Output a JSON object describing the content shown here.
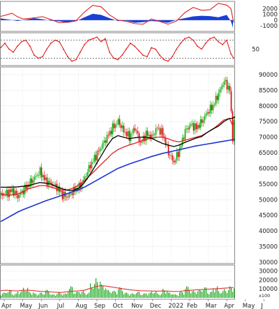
{
  "chart_data": [
    {
      "type": "area",
      "panel": "macd_histogram",
      "ylim": [
        -1700,
        3000
      ],
      "y_ticks": [
        "2000",
        "1000",
        "0",
        "-1000"
      ],
      "colors": {
        "positive": "#1a3fd6",
        "negative": "#1a3fd6",
        "line": "#e02020"
      },
      "histogram": [
        [
          0,
          300
        ],
        [
          12,
          100
        ],
        [
          24,
          -150
        ],
        [
          36,
          100
        ],
        [
          48,
          350
        ],
        [
          60,
          150
        ],
        [
          72,
          -100
        ],
        [
          84,
          -200
        ],
        [
          96,
          -450
        ],
        [
          108,
          -200
        ],
        [
          120,
          500
        ],
        [
          132,
          1100
        ],
        [
          144,
          900
        ],
        [
          156,
          350
        ],
        [
          168,
          -150
        ],
        [
          180,
          -100
        ],
        [
          192,
          -450
        ],
        [
          204,
          -350
        ],
        [
          216,
          -150
        ],
        [
          228,
          -250
        ],
        [
          240,
          -450
        ],
        [
          252,
          50
        ],
        [
          264,
          350
        ],
        [
          276,
          650
        ],
        [
          288,
          750
        ],
        [
          300,
          700
        ],
        [
          312,
          500
        ],
        [
          324,
          900
        ],
        [
          330,
          -200
        ],
        [
          333,
          -1300
        ]
      ],
      "signal_line": [
        [
          0,
          650
        ],
        [
          8,
          900
        ],
        [
          16,
          1200
        ],
        [
          24,
          600
        ],
        [
          32,
          200
        ],
        [
          44,
          350
        ],
        [
          60,
          600
        ],
        [
          72,
          100
        ],
        [
          84,
          -450
        ],
        [
          96,
          -350
        ],
        [
          108,
          -100
        ],
        [
          120,
          1400
        ],
        [
          132,
          2550
        ],
        [
          144,
          2300
        ],
        [
          156,
          900
        ],
        [
          168,
          0
        ],
        [
          180,
          -200
        ],
        [
          192,
          -600
        ],
        [
          204,
          -700
        ],
        [
          216,
          200
        ],
        [
          226,
          -150
        ],
        [
          240,
          -700
        ],
        [
          252,
          -150
        ],
        [
          264,
          1300
        ],
        [
          276,
          2200
        ],
        [
          288,
          1700
        ],
        [
          300,
          1800
        ],
        [
          312,
          2900
        ],
        [
          324,
          2600
        ],
        [
          330,
          2000
        ],
        [
          334,
          -400
        ]
      ]
    },
    {
      "type": "line",
      "panel": "oscillator",
      "ylim": [
        0,
        100
      ],
      "y_ticks": [
        "50"
      ],
      "reference_levels": [
        80,
        20
      ],
      "colors": {
        "line": "#e02020"
      },
      "x": [
        0,
        6,
        12,
        18,
        24,
        30,
        36,
        42,
        48,
        54,
        60,
        66,
        72,
        78,
        84,
        90,
        96,
        102,
        108,
        114,
        120,
        126,
        132,
        138,
        144,
        150,
        156,
        162,
        168,
        174,
        180,
        186,
        192,
        198,
        204,
        210,
        216,
        222,
        228,
        234,
        240,
        246,
        252,
        258,
        264,
        270,
        276,
        282,
        288,
        294,
        300,
        306,
        312,
        318,
        324,
        330,
        334
      ],
      "values": [
        55,
        70,
        50,
        40,
        60,
        75,
        80,
        60,
        30,
        20,
        25,
        50,
        70,
        80,
        75,
        50,
        25,
        10,
        15,
        40,
        65,
        80,
        85,
        90,
        75,
        85,
        40,
        20,
        15,
        30,
        50,
        70,
        60,
        45,
        30,
        25,
        55,
        50,
        30,
        15,
        10,
        25,
        50,
        70,
        85,
        90,
        80,
        60,
        50,
        70,
        85,
        90,
        75,
        65,
        80,
        35,
        20
      ]
    },
    {
      "type": "line",
      "panel": "price",
      "ylim": [
        30000,
        92000
      ],
      "y_ticks": [
        "90000",
        "85000",
        "80000",
        "75000",
        "70000",
        "65000",
        "60000",
        "55000",
        "50000",
        "45000",
        "40000",
        "35000",
        "30000"
      ],
      "x_ticks": [
        "Apr",
        "May",
        "Jun",
        "Jul",
        "Aug",
        "Sep",
        "Oct",
        "Nov",
        "Dec",
        "2022",
        "Feb",
        "Mar",
        "Apr",
        "May",
        "J"
      ],
      "colors": {
        "up_candle": "#00aa00",
        "down_candle": "#dd0000",
        "ma_short": "#e02020",
        "ma_mid": "#000000",
        "ma_long": "#1a34d0"
      },
      "x": [
        0,
        8,
        16,
        24,
        32,
        40,
        48,
        56,
        64,
        72,
        80,
        88,
        96,
        104,
        112,
        120,
        128,
        136,
        144,
        152,
        160,
        168,
        176,
        184,
        192,
        200,
        208,
        216,
        224,
        232,
        240,
        248,
        256,
        264,
        272,
        280,
        288,
        296,
        304,
        312,
        320,
        328,
        332,
        336
      ],
      "close": [
        51500,
        52000,
        53000,
        51000,
        53000,
        55000,
        57000,
        59000,
        56000,
        55000,
        54000,
        51500,
        51000,
        53000,
        54000,
        57000,
        61000,
        64000,
        67000,
        70000,
        73000,
        75000,
        72000,
        70000,
        73000,
        68000,
        71000,
        70000,
        73000,
        71000,
        65000,
        62000,
        66000,
        72000,
        74000,
        73000,
        75000,
        78000,
        80000,
        84000,
        88000,
        85000,
        70000,
        79000
      ],
      "series": [
        {
          "name": "",
          "color": "#e02020",
          "values": [
            52000,
            51500,
            51500,
            51800,
            52500,
            53500,
            54000,
            54500,
            54500,
            54000,
            53500,
            53000,
            53200,
            53700,
            54700,
            56000,
            57800,
            59500,
            61300,
            63000,
            64800,
            66000,
            66800,
            67500,
            68000,
            68700,
            69300,
            69600,
            70000,
            70000,
            69500,
            68800,
            68500,
            69000,
            69500,
            70000,
            70500,
            71500,
            72500,
            74000,
            75500,
            76000,
            74000,
            74500
          ]
        },
        {
          "name": "",
          "color": "#000000",
          "values": [
            54000,
            54000,
            54000,
            54100,
            54300,
            54500,
            55000,
            55500,
            55300,
            55000,
            54200,
            53500,
            53000,
            53000,
            53700,
            55500,
            58000,
            61000,
            64000,
            67000,
            69500,
            70500,
            70000,
            69500,
            69800,
            70000,
            70000,
            69700,
            68800,
            68000,
            67500,
            67000,
            67500,
            68300,
            69000,
            69700,
            70200,
            71500,
            72600,
            73500,
            75000,
            76000,
            76000,
            76500
          ]
        },
        {
          "name": "",
          "color": "#1a34d0",
          "values": [
            43000,
            44000,
            45000,
            46000,
            46800,
            47500,
            48200,
            48900,
            49600,
            50200,
            50800,
            51400,
            52000,
            52600,
            53200,
            54000,
            55000,
            56000,
            57000,
            58000,
            59000,
            60000,
            60700,
            61400,
            62000,
            62600,
            63200,
            63800,
            64300,
            64800,
            65200,
            65600,
            66000,
            66400,
            66800,
            67200,
            67500,
            67800,
            68100,
            68400,
            68700,
            69000,
            69200,
            69300
          ]
        }
      ]
    },
    {
      "type": "bar",
      "panel": "volume",
      "ylim": [
        0,
        35000
      ],
      "y_ticks": [
        "30000",
        "20000",
        "10000"
      ],
      "multiplier_label": "x100",
      "colors": {
        "bars": "#22aa22",
        "ma": "#e02020"
      },
      "x": [
        0,
        8,
        16,
        24,
        32,
        40,
        48,
        56,
        64,
        72,
        80,
        88,
        96,
        104,
        112,
        120,
        128,
        136,
        144,
        152,
        160,
        168,
        176,
        184,
        192,
        200,
        208,
        216,
        224,
        232,
        240,
        248,
        256,
        264,
        272,
        280,
        288,
        296,
        304,
        312,
        320,
        328,
        334
      ],
      "values": [
        6000,
        9000,
        5000,
        8000,
        12000,
        7000,
        5000,
        6000,
        9000,
        4000,
        6000,
        5000,
        13000,
        7000,
        8000,
        6000,
        17000,
        22000,
        15000,
        9000,
        8000,
        12000,
        6000,
        5000,
        7000,
        5000,
        6000,
        8000,
        5000,
        10000,
        6000,
        4000,
        7000,
        13000,
        8000,
        9000,
        12000,
        7000,
        13000,
        8000,
        10000,
        13000,
        14000
      ],
      "ma_values": [
        8000,
        8500,
        8000,
        7700,
        8500,
        8500,
        8000,
        7300,
        7000,
        6500,
        6200,
        6000,
        7000,
        7500,
        7800,
        8500,
        10500,
        12500,
        13500,
        13000,
        12000,
        11000,
        10000,
        9000,
        8500,
        8000,
        7800,
        7700,
        7500,
        7700,
        7500,
        7000,
        7200,
        8000,
        8500,
        8800,
        9200,
        9500,
        10000,
        10300,
        10800,
        11200,
        11500
      ]
    }
  ]
}
